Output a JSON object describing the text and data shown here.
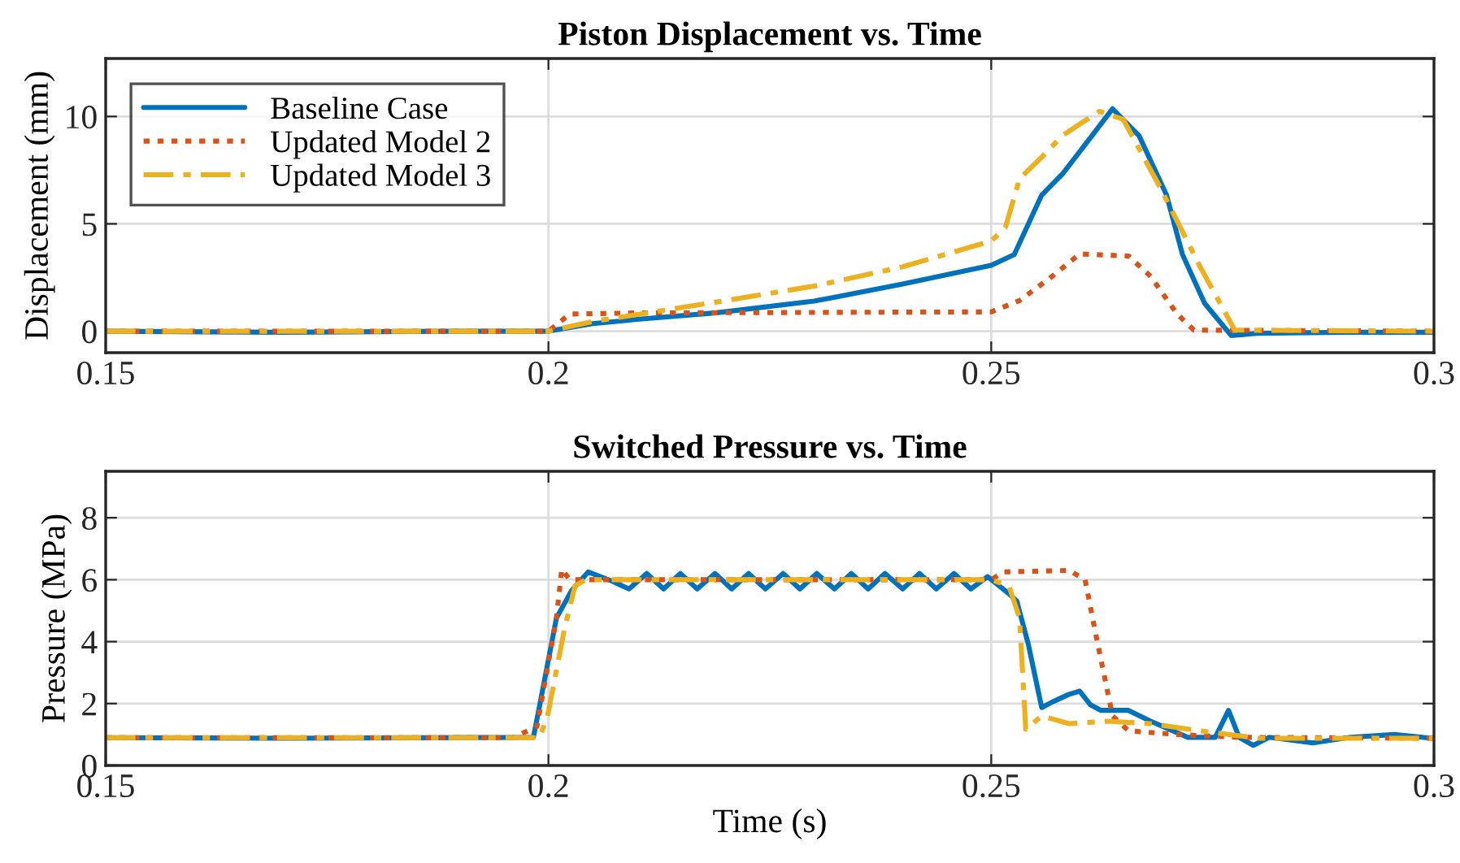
{
  "chart_data": [
    {
      "type": "line",
      "title": "Piston Displacement vs. Time",
      "ylabel": "Displacement (mm)",
      "xlim": [
        0.15,
        0.3
      ],
      "xticks": [
        0.15,
        0.2,
        0.25,
        0.3
      ],
      "ylim": [
        -1,
        12.7
      ],
      "yticks": [
        0,
        5,
        10
      ],
      "grid": true,
      "legend": "top left",
      "series": [
        {
          "name": "Baseline Case",
          "color": "#0072bd",
          "line_style": "solid",
          "x": [
            0.15,
            0.17,
            0.19,
            0.2,
            0.205,
            0.21,
            0.219,
            0.23,
            0.24,
            0.25,
            0.2526,
            0.2557,
            0.2581,
            0.261,
            0.2637,
            0.2667,
            0.2698,
            0.2716,
            0.2741,
            0.2771,
            0.28,
            0.29,
            0.3
          ],
          "values": [
            0,
            -0.05,
            0,
            0,
            0.35,
            0.55,
            0.86,
            1.4,
            2.2,
            3.07,
            3.57,
            6.34,
            7.35,
            8.9,
            10.36,
            9.1,
            6.34,
            3.57,
            1.3,
            -0.2,
            -0.1,
            -0.05,
            -0.05
          ]
        },
        {
          "name": "Updated Model 2",
          "color": "#d95319",
          "line_style": "dotted",
          "x": [
            0.15,
            0.2,
            0.2024,
            0.21,
            0.219,
            0.25,
            0.2532,
            0.2569,
            0.26,
            0.2655,
            0.268,
            0.271,
            0.2729,
            0.3
          ],
          "values": [
            0,
            0,
            0.8,
            0.85,
            0.86,
            0.9,
            1.43,
            2.56,
            3.6,
            3.5,
            2.56,
            0.8,
            0.05,
            0
          ]
        },
        {
          "name": "Updated Model 3",
          "color": "#edb120",
          "line_style": "dashed",
          "x": [
            0.15,
            0.2,
            0.205,
            0.219,
            0.23,
            0.24,
            0.25,
            0.2516,
            0.2532,
            0.2563,
            0.258,
            0.2622,
            0.2649,
            0.2692,
            0.2735,
            0.2775,
            0.3
          ],
          "values": [
            0,
            0,
            0.45,
            1.36,
            2.1,
            3.0,
            4.2,
            4.83,
            7.1,
            8.35,
            9.1,
            10.24,
            9.87,
            6.6,
            3.07,
            0.05,
            0
          ]
        }
      ]
    },
    {
      "type": "line",
      "title": "Switched Pressure vs. Time",
      "xlabel": "Time (s)",
      "ylabel": "Pressure (MPa)",
      "xlim": [
        0.15,
        0.3
      ],
      "xticks": [
        0.15,
        0.2,
        0.25,
        0.3
      ],
      "ylim": [
        0,
        9.5
      ],
      "yticks": [
        0,
        2,
        4,
        6,
        8
      ],
      "grid": true,
      "series": [
        {
          "color": "#0072bd",
          "line_style": "solid",
          "x": [
            0.15,
            0.17,
            0.1983,
            0.1989,
            0.2009,
            0.2026,
            0.2045,
            0.2072,
            0.2091,
            0.2111,
            0.213,
            0.2149,
            0.2168,
            0.2188,
            0.2207,
            0.2226,
            0.2245,
            0.2265,
            0.2284,
            0.2303,
            0.2323,
            0.2342,
            0.2361,
            0.238,
            0.24,
            0.2419,
            0.2438,
            0.2458,
            0.2477,
            0.2496,
            0.252,
            0.2529,
            0.2542,
            0.2557,
            0.2569,
            0.2588,
            0.26,
            0.2612,
            0.2624,
            0.2655,
            0.268,
            0.2722,
            0.2753,
            0.2768,
            0.278,
            0.2796,
            0.2814,
            0.2863,
            0.2906,
            0.2955,
            0.2998
          ],
          "values": [
            0.9,
            0.88,
            0.91,
            1.78,
            4.76,
            5.64,
            6.25,
            5.95,
            5.7,
            6.2,
            5.7,
            6.2,
            5.7,
            6.2,
            5.7,
            6.2,
            5.7,
            6.2,
            5.7,
            6.2,
            5.7,
            6.2,
            5.7,
            6.2,
            5.7,
            6.2,
            5.7,
            6.2,
            5.7,
            6.1,
            5.55,
            5.3,
            3.9,
            1.87,
            2.05,
            2.3,
            2.4,
            1.96,
            1.78,
            1.78,
            1.43,
            0.91,
            0.91,
            1.78,
            0.91,
            0.65,
            0.91,
            0.73,
            0.91,
            1.0,
            0.88
          ]
        },
        {
          "color": "#d95319",
          "line_style": "dotted",
          "x": [
            0.15,
            0.196,
            0.1987,
            0.2009,
            0.2015,
            0.2024,
            0.25,
            0.2514,
            0.2588,
            0.2606,
            0.2618,
            0.2637,
            0.2655,
            0.271,
            0.2778,
            0.3
          ],
          "values": [
            0.9,
            0.9,
            1.26,
            4.76,
            6.34,
            6.0,
            6.0,
            6.25,
            6.3,
            6.0,
            4.25,
            1.6,
            1.12,
            1.0,
            0.91,
            0.88
          ]
        },
        {
          "color": "#edb120",
          "line_style": "dashed",
          "x": [
            0.15,
            0.199,
            0.1999,
            0.2018,
            0.203,
            0.2042,
            0.25,
            0.252,
            0.2532,
            0.2539,
            0.2557,
            0.2588,
            0.2631,
            0.268,
            0.2741,
            0.2802,
            0.3
          ],
          "values": [
            0.9,
            0.9,
            1.6,
            4.4,
            5.8,
            6.0,
            6.0,
            5.8,
            4.76,
            1.17,
            1.6,
            1.35,
            1.43,
            1.35,
            1.1,
            0.88,
            0.88
          ]
        }
      ]
    }
  ]
}
